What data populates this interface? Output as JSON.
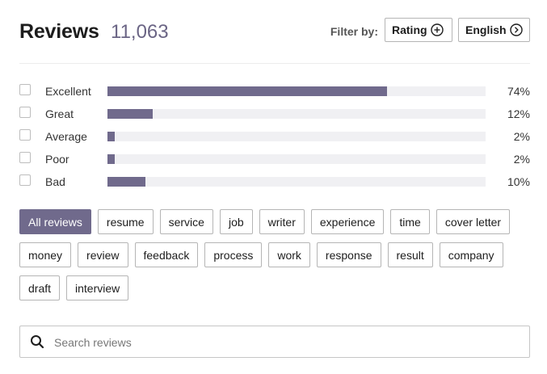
{
  "header": {
    "title": "Reviews",
    "count": "11,063",
    "filter_label": "Filter by:",
    "rating_button": "Rating",
    "language_button": "English"
  },
  "ratings": [
    {
      "label": "Excellent",
      "percent_text": "74%",
      "fill": 0.74
    },
    {
      "label": "Great",
      "percent_text": "12%",
      "fill": 0.12
    },
    {
      "label": "Average",
      "percent_text": "2%",
      "fill": 0.02
    },
    {
      "label": "Poor",
      "percent_text": "2%",
      "fill": 0.02
    },
    {
      "label": "Bad",
      "percent_text": "10%",
      "fill": 0.1
    }
  ],
  "tags": [
    "All reviews",
    "resume",
    "service",
    "job",
    "writer",
    "experience",
    "time",
    "cover letter",
    "money",
    "review",
    "feedback",
    "process",
    "work",
    "response",
    "result",
    "company",
    "draft",
    "interview"
  ],
  "active_tag": "All reviews",
  "search": {
    "placeholder": "Search reviews"
  },
  "colors": {
    "accent": "#706a8c",
    "track": "#f0f0f3"
  }
}
